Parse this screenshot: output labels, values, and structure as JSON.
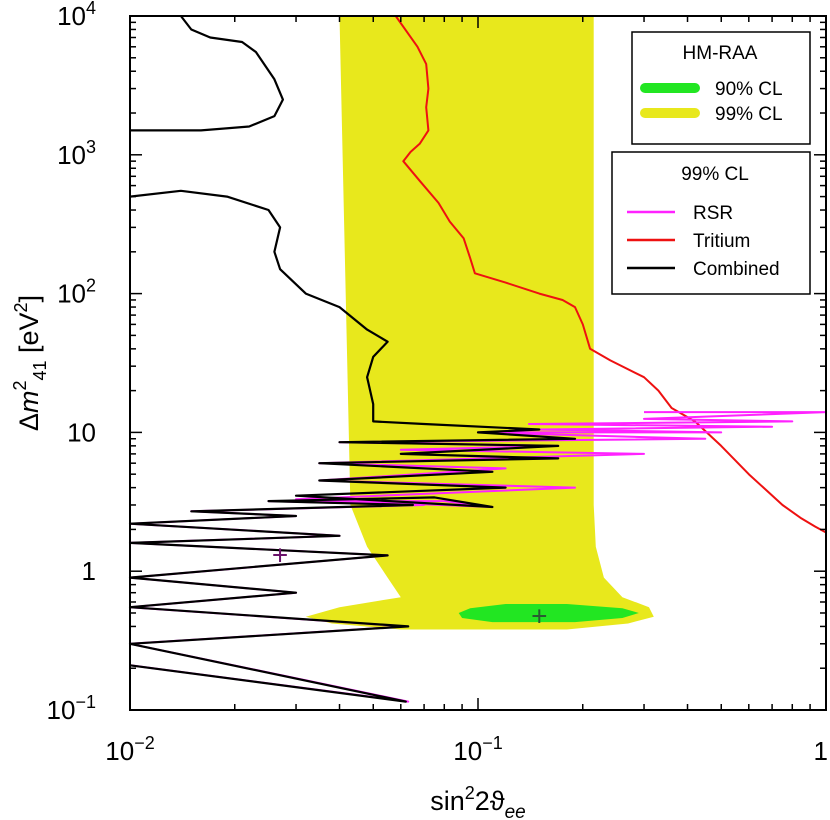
{
  "chart_data": {
    "type": "line",
    "xlabel": "sin²2ϑee",
    "ylabel": "Δm²41 [eV²]",
    "x_scale": "log",
    "y_scale": "log",
    "xlim": [
      0.01,
      1
    ],
    "ylim": [
      0.1,
      10000
    ],
    "x_ticks": [
      {
        "value": 0.01,
        "base": "10",
        "exp": "−2"
      },
      {
        "value": 0.1,
        "base": "10",
        "exp": "−1"
      },
      {
        "value": 1,
        "base": "1",
        "exp": ""
      }
    ],
    "y_ticks": [
      {
        "value": 0.1,
        "base": "10",
        "exp": "−1"
      },
      {
        "value": 1,
        "base": "1",
        "exp": ""
      },
      {
        "value": 10,
        "base": "10",
        "exp": ""
      },
      {
        "value": 100,
        "base": "10",
        "exp": "2"
      },
      {
        "value": 1000,
        "base": "10",
        "exp": "3"
      },
      {
        "value": 10000,
        "base": "10",
        "exp": "4"
      }
    ],
    "legend_top": {
      "title": "HM-RAA",
      "entries": [
        {
          "label": "90% CL",
          "color": "#22e622"
        },
        {
          "label": "99% CL",
          "color": "#e8e81c"
        }
      ]
    },
    "legend_bottom": {
      "title": "99% CL",
      "entries": [
        {
          "label": "RSR",
          "color": "#ff22ff"
        },
        {
          "label": "Tritium",
          "color": "#ee1111"
        },
        {
          "label": "Combined",
          "color": "#000000"
        }
      ]
    },
    "regions": {
      "raa_99": {
        "color": "#e8e81c",
        "band": [
          [
            10000,
            0.04,
            0.215
          ],
          [
            3,
            0.043,
            0.215
          ],
          [
            1.5,
            0.048,
            0.218
          ],
          [
            0.9,
            0.055,
            0.23
          ],
          [
            0.65,
            0.06,
            0.26
          ],
          [
            0.55,
            0.04,
            0.31
          ],
          [
            0.47,
            0.032,
            0.32
          ],
          [
            0.42,
            0.038,
            0.27
          ],
          [
            0.38,
            0.06,
            0.18
          ]
        ]
      },
      "raa_90": {
        "color": "#22e622",
        "band": [
          [
            0.58,
            0.12,
            0.18
          ],
          [
            0.54,
            0.095,
            0.26
          ],
          [
            0.5,
            0.088,
            0.29
          ],
          [
            0.46,
            0.09,
            0.26
          ],
          [
            0.43,
            0.11,
            0.19
          ]
        ]
      }
    },
    "series": [
      {
        "name": "Tritium",
        "color": "#ee1111",
        "points": [
          [
            0.058,
            10000
          ],
          [
            0.067,
            6000
          ],
          [
            0.071,
            4500
          ],
          [
            0.072,
            3000
          ],
          [
            0.071,
            2200
          ],
          [
            0.072,
            1500
          ],
          [
            0.068,
            1200
          ],
          [
            0.064,
            1050
          ],
          [
            0.061,
            900
          ],
          [
            0.068,
            650
          ],
          [
            0.077,
            450
          ],
          [
            0.083,
            330
          ],
          [
            0.091,
            250
          ],
          [
            0.095,
            180
          ],
          [
            0.098,
            140
          ],
          [
            0.12,
            120
          ],
          [
            0.15,
            100
          ],
          [
            0.175,
            90
          ],
          [
            0.19,
            80
          ],
          [
            0.2,
            60
          ],
          [
            0.21,
            40
          ],
          [
            0.24,
            33
          ],
          [
            0.3,
            25
          ],
          [
            0.33,
            20
          ],
          [
            0.36,
            15
          ],
          [
            0.42,
            12
          ],
          [
            0.5,
            8
          ],
          [
            0.6,
            5
          ],
          [
            0.75,
            3
          ],
          [
            0.85,
            2.4
          ],
          [
            0.93,
            2.1
          ],
          [
            1,
            1.9
          ]
        ]
      },
      {
        "name": "RSR",
        "color": "#ff22ff",
        "points": [
          [
            0.01,
            0.21
          ],
          [
            0.063,
            0.115
          ],
          [
            0.01,
            0.3
          ],
          [
            0.062,
            0.4
          ],
          [
            0.01,
            0.55
          ],
          [
            0.03,
            0.7
          ],
          [
            0.01,
            0.9
          ],
          [
            0.055,
            1.3
          ],
          [
            0.01,
            1.6
          ],
          [
            0.04,
            1.8
          ],
          [
            0.01,
            2.2
          ],
          [
            0.03,
            2.5
          ],
          [
            0.015,
            2.7
          ],
          [
            0.07,
            3
          ],
          [
            0.025,
            3.2
          ],
          [
            0.08,
            3.2
          ],
          [
            0.11,
            2.9
          ],
          [
            0.03,
            3.3
          ],
          [
            0.19,
            4
          ],
          [
            0.035,
            4.5
          ],
          [
            0.12,
            5.5
          ],
          [
            0.035,
            6
          ],
          [
            0.3,
            7
          ],
          [
            0.06,
            7.5
          ],
          [
            0.17,
            8
          ],
          [
            0.04,
            8.5
          ],
          [
            0.45,
            9
          ],
          [
            0.1,
            10
          ],
          [
            0.5,
            10
          ],
          [
            0.15,
            10.5
          ],
          [
            0.7,
            11
          ],
          [
            0.14,
            11.5
          ],
          [
            0.8,
            12
          ],
          [
            0.3,
            12.5
          ],
          [
            1,
            14
          ],
          [
            0.3,
            14
          ]
        ]
      },
      {
        "name": "Combined",
        "color": "#000000",
        "points": [
          [
            0.01,
            0.21
          ],
          [
            0.062,
            0.115
          ],
          [
            0.01,
            0.3
          ],
          [
            0.063,
            0.4
          ],
          [
            0.01,
            0.55
          ],
          [
            0.03,
            0.7
          ],
          [
            0.01,
            0.9
          ],
          [
            0.055,
            1.3
          ],
          [
            0.01,
            1.6
          ],
          [
            0.04,
            1.8
          ],
          [
            0.01,
            2.2
          ],
          [
            0.03,
            2.5
          ],
          [
            0.015,
            2.7
          ],
          [
            0.065,
            3
          ],
          [
            0.025,
            3.2
          ],
          [
            0.075,
            3.4
          ],
          [
            0.11,
            2.9
          ],
          [
            0.03,
            3.5
          ],
          [
            0.12,
            4
          ],
          [
            0.035,
            4.5
          ],
          [
            0.11,
            5.2
          ],
          [
            0.035,
            6
          ],
          [
            0.17,
            6.5
          ],
          [
            0.06,
            7
          ],
          [
            0.17,
            8
          ],
          [
            0.04,
            8.5
          ],
          [
            0.19,
            9
          ],
          [
            0.1,
            10
          ],
          [
            0.15,
            10.5
          ],
          [
            0.07,
            11.5
          ],
          [
            0.05,
            12
          ],
          [
            0.05,
            16
          ],
          [
            0.048,
            25
          ],
          [
            0.05,
            35
          ],
          [
            0.055,
            45
          ],
          [
            0.048,
            55
          ],
          [
            0.04,
            80
          ],
          [
            0.032,
            100
          ],
          [
            0.027,
            150
          ],
          [
            0.026,
            200
          ],
          [
            0.027,
            300
          ],
          [
            0.025,
            400
          ],
          [
            0.019,
            500
          ],
          [
            0.014,
            550
          ],
          [
            0.01,
            500
          ]
        ]
      },
      {
        "name": "Combined",
        "color": "#000000",
        "points": [
          [
            0.01,
            1500
          ],
          [
            0.016,
            1500
          ],
          [
            0.022,
            1600
          ],
          [
            0.026,
            1900
          ],
          [
            0.0275,
            2500
          ],
          [
            0.026,
            3500
          ],
          [
            0.023,
            5500
          ],
          [
            0.021,
            6500
          ],
          [
            0.017,
            7000
          ],
          [
            0.015,
            8000
          ],
          [
            0.014,
            10000
          ]
        ]
      }
    ],
    "best_fits": [
      {
        "label": "+",
        "x": 0.027,
        "y": 1.3,
        "color": "#6a126a"
      },
      {
        "label": "+",
        "x": 0.15,
        "y": 0.47,
        "color": "#2a5a32"
      }
    ]
  }
}
